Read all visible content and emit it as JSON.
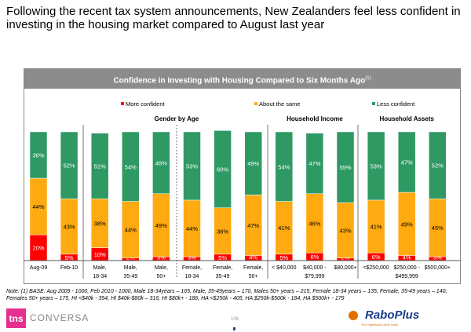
{
  "headline": "Following the recent tax system announcements, New Zealanders feel less confident in investing in the housing market compared to August last year",
  "chart_data": {
    "type": "bar",
    "stacked": true,
    "title": "Confidence in Investing with Housing Compared to Six Months Ago",
    "title_superscript": "(1)",
    "legend_position": "top",
    "ylim": [
      0,
      100
    ],
    "categories": [
      "Aug-09",
      "Feb-10",
      "Male, 18-34",
      "Male, 35-49",
      "Male, 50+",
      "Female, 18-34",
      "Female, 35-49",
      "Female, 50+",
      "< $40,000",
      "$40,000 - $79,999",
      "$80,000+",
      "<$250,000",
      "$250,000 - $499,999",
      "$500,000+"
    ],
    "groups": [
      {
        "label": "Gender by Age",
        "from": 2,
        "to": 7
      },
      {
        "label": "Household Income",
        "from": 8,
        "to": 10
      },
      {
        "label": "Household Assets",
        "from": 11,
        "to": 13
      }
    ],
    "series": [
      {
        "name": "More confident",
        "color": "#ff0000",
        "label_color": "#ffffff",
        "values": [
          20,
          5,
          10,
          2,
          3,
          3,
          5,
          4,
          5,
          6,
          2,
          6,
          4,
          3
        ]
      },
      {
        "name": "About the same",
        "color": "#ffaa10",
        "label_color": "#000000",
        "values": [
          44,
          43,
          38,
          44,
          49,
          44,
          36,
          47,
          41,
          46,
          43,
          41,
          49,
          45
        ]
      },
      {
        "name": "Less confident",
        "color": "#2f9964",
        "label_color": "#ffffff",
        "values": [
          36,
          52,
          51,
          54,
          48,
          53,
          60,
          49,
          54,
          47,
          55,
          53,
          47,
          52
        ]
      }
    ]
  },
  "note": "Note: (1) BASE: Aug 2009 - 1000, Feb 2010 - 1000, Male 18-34years – 165, Male, 35-49years – 170, Males 50+ years – 215, Female 18-34 years – 135, Female, 35-49 years – 140, Females 50+ years – 175, HI <$40k - 354, HI $40k-$80k – 316, HI $80k+ - 186, HA <$250k - 405, HA $250k-$500k - 184, HA $500k+ - 179",
  "footer": {
    "logo_left": "tns",
    "logo_left_text": "CONVERSA",
    "page_number": "106",
    "logo_right": "RaboPlus",
    "logo_right_tagline": "Your significant other bank"
  }
}
